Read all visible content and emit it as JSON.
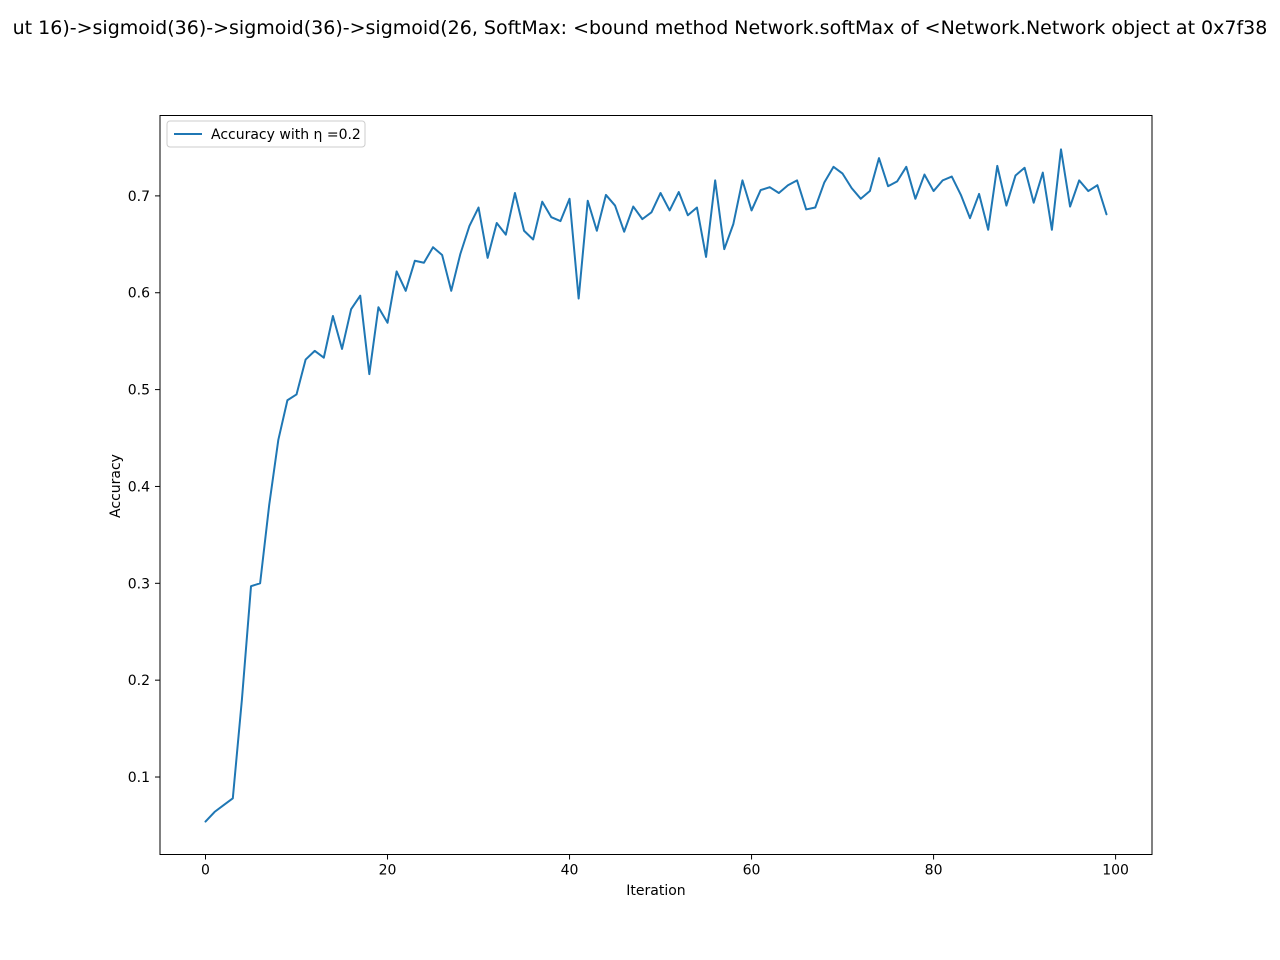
{
  "chart_data": {
    "type": "line",
    "title": "ut 16)->sigmoid(36)->sigmoid(36)->sigmoid(26, SoftMax: <bound method Network.softMax of <Network.Network object at 0x7f38",
    "xlabel": "Iteration",
    "ylabel": "Accuracy",
    "xlim": [
      -5,
      104
    ],
    "ylim": [
      0.02,
      0.783
    ],
    "xticks": [
      "0",
      "20",
      "40",
      "60",
      "80",
      "100"
    ],
    "yticks": [
      "0.1",
      "0.2",
      "0.3",
      "0.4",
      "0.5",
      "0.6",
      "0.7"
    ],
    "grid": false,
    "legend_position": "upper-left",
    "series": [
      {
        "name": "Accuracy with η =0.2",
        "color": "#1f77b4",
        "x": [
          0,
          1,
          2,
          3,
          4,
          5,
          6,
          7,
          8,
          9,
          10,
          11,
          12,
          13,
          14,
          15,
          16,
          17,
          18,
          19,
          20,
          21,
          22,
          23,
          24,
          25,
          26,
          27,
          28,
          29,
          30,
          31,
          32,
          33,
          34,
          35,
          36,
          37,
          38,
          39,
          40,
          41,
          42,
          43,
          44,
          45,
          46,
          47,
          48,
          49,
          50,
          51,
          52,
          53,
          54,
          55,
          56,
          57,
          58,
          59,
          60,
          61,
          62,
          63,
          64,
          65,
          66,
          67,
          68,
          69,
          70,
          71,
          72,
          73,
          74,
          75,
          76,
          77,
          78,
          79,
          80,
          81,
          82,
          83,
          84,
          85,
          86,
          87,
          88,
          89,
          90,
          91,
          92,
          93,
          94,
          95,
          96,
          97,
          98,
          99
        ],
        "values": [
          0.054,
          0.064,
          0.071,
          0.078,
          0.18,
          0.297,
          0.3,
          0.381,
          0.448,
          0.489,
          0.495,
          0.531,
          0.54,
          0.533,
          0.576,
          0.542,
          0.583,
          0.597,
          0.516,
          0.585,
          0.569,
          0.622,
          0.602,
          0.633,
          0.631,
          0.647,
          0.639,
          0.602,
          0.64,
          0.669,
          0.688,
          0.636,
          0.672,
          0.66,
          0.703,
          0.664,
          0.655,
          0.694,
          0.678,
          0.674,
          0.697,
          0.594,
          0.695,
          0.664,
          0.701,
          0.69,
          0.663,
          0.689,
          0.676,
          0.683,
          0.703,
          0.685,
          0.704,
          0.68,
          0.688,
          0.637,
          0.716,
          0.645,
          0.671,
          0.716,
          0.685,
          0.706,
          0.709,
          0.703,
          0.711,
          0.716,
          0.686,
          0.688,
          0.714,
          0.73,
          0.723,
          0.708,
          0.697,
          0.705,
          0.739,
          0.71,
          0.715,
          0.73,
          0.697,
          0.722,
          0.705,
          0.716,
          0.72,
          0.701,
          0.677,
          0.702,
          0.665,
          0.731,
          0.69,
          0.721,
          0.729,
          0.693,
          0.724,
          0.665,
          0.748,
          0.689,
          0.716,
          0.705,
          0.711,
          0.681
        ]
      }
    ]
  }
}
